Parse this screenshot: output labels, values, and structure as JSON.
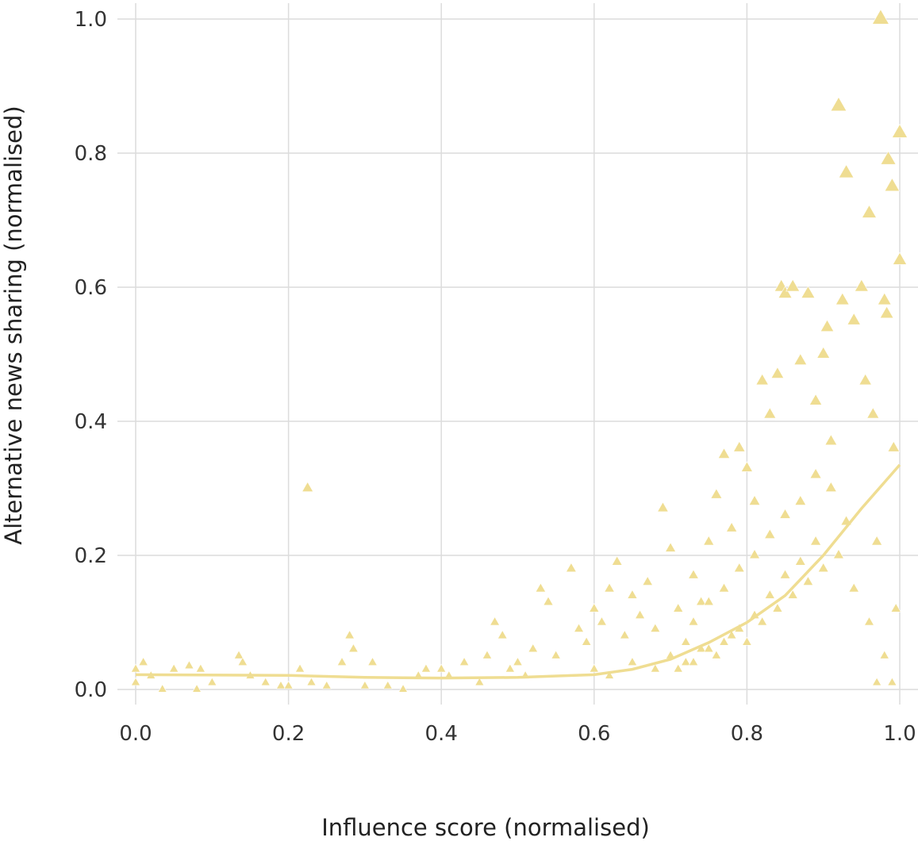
{
  "chart_data": {
    "type": "scatter",
    "xlabel": "Influence score (normalised)",
    "ylabel": "Alternative news sharing (normalised)",
    "xlim": [
      0.0,
      1.0
    ],
    "ylim": [
      0.0,
      1.0
    ],
    "x_ticks": [
      "0.0",
      "0.2",
      "0.4",
      "0.6",
      "0.8",
      "1.0"
    ],
    "y_ticks": [
      "0.0",
      "0.2",
      "0.4",
      "0.6",
      "0.8",
      "1.0"
    ],
    "grid": true,
    "marker": "triangle",
    "point_color": "#efdd92",
    "trend_color": "#efdd92",
    "points": [
      [
        0.0,
        0.03
      ],
      [
        0.0,
        0.01
      ],
      [
        0.01,
        0.04
      ],
      [
        0.02,
        0.02
      ],
      [
        0.035,
        0.0
      ],
      [
        0.05,
        0.03
      ],
      [
        0.07,
        0.035
      ],
      [
        0.08,
        0.0
      ],
      [
        0.085,
        0.03
      ],
      [
        0.1,
        0.01
      ],
      [
        0.135,
        0.05
      ],
      [
        0.14,
        0.04
      ],
      [
        0.15,
        0.02
      ],
      [
        0.17,
        0.01
      ],
      [
        0.19,
        0.005
      ],
      [
        0.2,
        0.005
      ],
      [
        0.215,
        0.03
      ],
      [
        0.225,
        0.3
      ],
      [
        0.23,
        0.01
      ],
      [
        0.25,
        0.005
      ],
      [
        0.27,
        0.04
      ],
      [
        0.28,
        0.08
      ],
      [
        0.285,
        0.06
      ],
      [
        0.3,
        0.005
      ],
      [
        0.31,
        0.04
      ],
      [
        0.33,
        0.005
      ],
      [
        0.35,
        0.0
      ],
      [
        0.37,
        0.02
      ],
      [
        0.38,
        0.03
      ],
      [
        0.4,
        0.03
      ],
      [
        0.41,
        0.02
      ],
      [
        0.43,
        0.04
      ],
      [
        0.45,
        0.01
      ],
      [
        0.46,
        0.05
      ],
      [
        0.47,
        0.1
      ],
      [
        0.48,
        0.08
      ],
      [
        0.49,
        0.03
      ],
      [
        0.5,
        0.04
      ],
      [
        0.51,
        0.02
      ],
      [
        0.52,
        0.06
      ],
      [
        0.53,
        0.15
      ],
      [
        0.54,
        0.13
      ],
      [
        0.55,
        0.05
      ],
      [
        0.57,
        0.18
      ],
      [
        0.58,
        0.09
      ],
      [
        0.59,
        0.07
      ],
      [
        0.6,
        0.12
      ],
      [
        0.61,
        0.1
      ],
      [
        0.62,
        0.15
      ],
      [
        0.63,
        0.19
      ],
      [
        0.64,
        0.08
      ],
      [
        0.65,
        0.14
      ],
      [
        0.66,
        0.11
      ],
      [
        0.67,
        0.16
      ],
      [
        0.68,
        0.09
      ],
      [
        0.69,
        0.27
      ],
      [
        0.7,
        0.21
      ],
      [
        0.71,
        0.12
      ],
      [
        0.72,
        0.07
      ],
      [
        0.73,
        0.17
      ],
      [
        0.74,
        0.13
      ],
      [
        0.75,
        0.22
      ],
      [
        0.76,
        0.29
      ],
      [
        0.77,
        0.35
      ],
      [
        0.78,
        0.24
      ],
      [
        0.79,
        0.36
      ],
      [
        0.8,
        0.33
      ],
      [
        0.81,
        0.28
      ],
      [
        0.82,
        0.46
      ],
      [
        0.83,
        0.41
      ],
      [
        0.84,
        0.47
      ],
      [
        0.845,
        0.6
      ],
      [
        0.85,
        0.59
      ],
      [
        0.86,
        0.6
      ],
      [
        0.87,
        0.49
      ],
      [
        0.88,
        0.59
      ],
      [
        0.89,
        0.43
      ],
      [
        0.9,
        0.5
      ],
      [
        0.905,
        0.54
      ],
      [
        0.91,
        0.37
      ],
      [
        0.92,
        0.87
      ],
      [
        0.925,
        0.58
      ],
      [
        0.93,
        0.77
      ],
      [
        0.94,
        0.55
      ],
      [
        0.95,
        0.6
      ],
      [
        0.955,
        0.46
      ],
      [
        0.96,
        0.71
      ],
      [
        0.965,
        0.41
      ],
      [
        0.97,
        0.22
      ],
      [
        0.975,
        1.0
      ],
      [
        0.98,
        0.58
      ],
      [
        0.983,
        0.56
      ],
      [
        0.985,
        0.79
      ],
      [
        0.99,
        0.75
      ],
      [
        0.992,
        0.36
      ],
      [
        0.995,
        0.12
      ],
      [
        1.0,
        0.83
      ],
      [
        1.0,
        0.64
      ],
      [
        0.99,
        0.01
      ],
      [
        0.97,
        0.01
      ],
      [
        0.6,
        0.03
      ],
      [
        0.62,
        0.02
      ],
      [
        0.65,
        0.04
      ],
      [
        0.68,
        0.03
      ],
      [
        0.7,
        0.05
      ],
      [
        0.72,
        0.04
      ],
      [
        0.74,
        0.06
      ],
      [
        0.76,
        0.05
      ],
      [
        0.78,
        0.08
      ],
      [
        0.8,
        0.07
      ],
      [
        0.82,
        0.1
      ],
      [
        0.84,
        0.12
      ],
      [
        0.86,
        0.14
      ],
      [
        0.88,
        0.16
      ],
      [
        0.9,
        0.18
      ],
      [
        0.92,
        0.2
      ],
      [
        0.94,
        0.15
      ],
      [
        0.96,
        0.1
      ],
      [
        0.98,
        0.05
      ],
      [
        0.93,
        0.25
      ],
      [
        0.89,
        0.22
      ],
      [
        0.87,
        0.19
      ],
      [
        0.85,
        0.17
      ],
      [
        0.83,
        0.14
      ],
      [
        0.81,
        0.11
      ],
      [
        0.79,
        0.09
      ],
      [
        0.77,
        0.07
      ],
      [
        0.75,
        0.06
      ],
      [
        0.73,
        0.04
      ],
      [
        0.71,
        0.03
      ],
      [
        0.91,
        0.3
      ],
      [
        0.89,
        0.32
      ],
      [
        0.87,
        0.28
      ],
      [
        0.85,
        0.26
      ],
      [
        0.83,
        0.23
      ],
      [
        0.81,
        0.2
      ],
      [
        0.79,
        0.18
      ],
      [
        0.77,
        0.15
      ],
      [
        0.75,
        0.13
      ],
      [
        0.73,
        0.1
      ]
    ],
    "trend": [
      [
        0.0,
        0.022
      ],
      [
        0.2,
        0.021
      ],
      [
        0.3,
        0.018
      ],
      [
        0.4,
        0.017
      ],
      [
        0.5,
        0.018
      ],
      [
        0.6,
        0.022
      ],
      [
        0.65,
        0.03
      ],
      [
        0.7,
        0.045
      ],
      [
        0.75,
        0.07
      ],
      [
        0.8,
        0.1
      ],
      [
        0.85,
        0.14
      ],
      [
        0.9,
        0.2
      ],
      [
        0.95,
        0.27
      ],
      [
        1.0,
        0.335
      ]
    ]
  }
}
